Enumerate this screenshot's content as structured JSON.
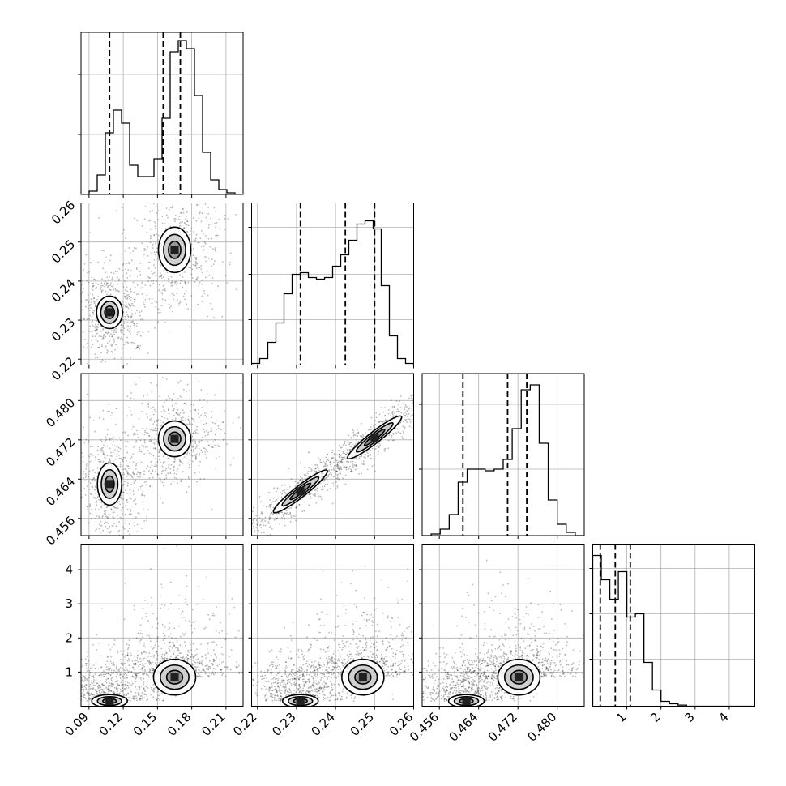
{
  "chart_data": {
    "type": "corner",
    "grid": true,
    "parameters": [
      {
        "range": [
          0.083,
          0.225
        ],
        "ticks": [
          0.09,
          0.12,
          0.15,
          0.18,
          0.21
        ],
        "tick_labels": [
          "0.09",
          "0.12",
          "0.15",
          "0.18",
          "0.21"
        ],
        "quantiles": [
          0.108,
          0.155,
          0.17
        ],
        "hist_max": 1.0,
        "histogram": [
          0.0,
          0.02,
          0.12,
          0.38,
          0.52,
          0.44,
          0.18,
          0.11,
          0.11,
          0.22,
          0.47,
          0.88,
          0.95,
          0.9,
          0.61,
          0.26,
          0.09,
          0.03,
          0.01,
          0.0
        ],
        "hist_axis_ticks": [
          0.37,
          0.74
        ]
      },
      {
        "range": [
          0.2185,
          0.26
        ],
        "ticks": [
          0.22,
          0.23,
          0.24,
          0.25,
          0.26
        ],
        "tick_labels": [
          "0.22",
          "0.23",
          "0.24",
          "0.25",
          "0.26"
        ],
        "quantiles": [
          0.231,
          0.2425,
          0.25
        ],
        "hist_max": 1.0,
        "histogram": [
          0.01,
          0.04,
          0.14,
          0.26,
          0.44,
          0.56,
          0.57,
          0.54,
          0.53,
          0.54,
          0.61,
          0.68,
          0.77,
          0.87,
          0.89,
          0.84,
          0.49,
          0.18,
          0.04,
          0.01
        ],
        "hist_axis_ticks": [
          0.28,
          0.56,
          0.85
        ]
      },
      {
        "range": [
          0.4525,
          0.4855
        ],
        "ticks": [
          0.456,
          0.464,
          0.472,
          0.48
        ],
        "tick_labels": [
          "0.456",
          "0.464",
          "0.472",
          "0.480"
        ],
        "quantiles": [
          0.4608,
          0.4699,
          0.4738
        ],
        "hist_max": 1.0,
        "histogram": [
          0.0,
          0.01,
          0.04,
          0.13,
          0.33,
          0.41,
          0.41,
          0.4,
          0.41,
          0.47,
          0.66,
          0.9,
          0.93,
          0.57,
          0.22,
          0.07,
          0.02,
          0.0
        ],
        "hist_axis_ticks": [
          0.41,
          0.81
        ]
      },
      {
        "range": [
          0.0,
          4.75
        ],
        "ticks": [
          1,
          2,
          3,
          4
        ],
        "tick_labels": [
          "1",
          "2",
          "3",
          "4"
        ],
        "quantiles": [
          0.22,
          0.66,
          1.1
        ],
        "hist_max": 1.0,
        "histogram": [
          0.93,
          0.78,
          0.66,
          0.83,
          0.55,
          0.57,
          0.27,
          0.1,
          0.03,
          0.015,
          0.007,
          0.0,
          0.0,
          0.0,
          0.0,
          0.0,
          0.0,
          0.0,
          0.0
        ],
        "hist_axis_ticks": [
          0.29,
          0.57,
          0.85
        ]
      }
    ],
    "density_modes": [
      {
        "params": [
          0,
          1
        ],
        "x": 0.108,
        "y": 0.232
      },
      {
        "params": [
          0,
          1
        ],
        "x": 0.165,
        "y": 0.248
      },
      {
        "params": [
          0,
          2
        ],
        "x": 0.108,
        "y": 0.463
      },
      {
        "params": [
          0,
          2
        ],
        "x": 0.165,
        "y": 0.4722
      },
      {
        "params": [
          1,
          2
        ],
        "x": 0.231,
        "y": 0.4615
      },
      {
        "params": [
          1,
          2
        ],
        "x": 0.25,
        "y": 0.4725
      },
      {
        "params": [
          0,
          3
        ],
        "x": 0.108,
        "y": 0.15
      },
      {
        "params": [
          0,
          3
        ],
        "x": 0.165,
        "y": 0.85
      },
      {
        "params": [
          1,
          3
        ],
        "x": 0.231,
        "y": 0.15
      },
      {
        "params": [
          1,
          3
        ],
        "x": 0.247,
        "y": 0.85
      },
      {
        "params": [
          2,
          3
        ],
        "x": 0.4615,
        "y": 0.15
      },
      {
        "params": [
          2,
          3
        ],
        "x": 0.4722,
        "y": 0.85
      }
    ]
  }
}
